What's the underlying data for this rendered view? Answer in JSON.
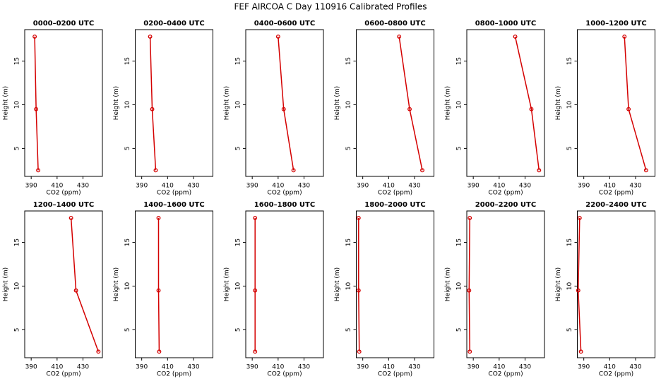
{
  "title": "FEF AIRCOA C  Day 110916  Calibrated Profiles",
  "chart_data": [
    {
      "type": "line",
      "title": "0000–0200 UTC",
      "xlabel": "CO2 (ppm)",
      "ylabel": "Height (m)",
      "color": "#d40000",
      "x": [
        392.7,
        393.8,
        395.4
      ],
      "values": [
        17.8,
        9.5,
        2.5
      ],
      "xlim": [
        385,
        445
      ],
      "ylim": [
        1.8,
        18.6
      ],
      "xticks": [
        390,
        410,
        430
      ],
      "yticks": [
        5,
        10,
        15
      ]
    },
    {
      "type": "line",
      "title": "0200–0400 UTC",
      "xlabel": "CO2 (ppm)",
      "ylabel": "Height (m)",
      "color": "#d40000",
      "x": [
        396.5,
        398.1,
        400.8
      ],
      "values": [
        17.8,
        9.5,
        2.5
      ],
      "xlim": [
        385,
        445
      ],
      "ylim": [
        1.8,
        18.6
      ],
      "xticks": [
        390,
        410,
        430
      ],
      "yticks": [
        5,
        10,
        15
      ]
    },
    {
      "type": "line",
      "title": "0400–0600 UTC",
      "xlabel": "CO2 (ppm)",
      "ylabel": "Height (m)",
      "color": "#d40000",
      "x": [
        410,
        414.3,
        421.9
      ],
      "values": [
        17.8,
        9.5,
        2.5
      ],
      "xlim": [
        385,
        445
      ],
      "ylim": [
        1.8,
        18.6
      ],
      "xticks": [
        390,
        410,
        430
      ],
      "yticks": [
        5,
        10,
        15
      ]
    },
    {
      "type": "line",
      "title": "0600–0800 UTC",
      "xlabel": "CO2 (ppm)",
      "ylabel": "Height (m)",
      "color": "#d40000",
      "x": [
        418.1,
        426.2,
        436
      ],
      "values": [
        17.8,
        9.5,
        2.5
      ],
      "xlim": [
        385,
        445
      ],
      "ylim": [
        1.8,
        18.6
      ],
      "xticks": [
        390,
        410,
        430
      ],
      "yticks": [
        5,
        10,
        15
      ]
    },
    {
      "type": "line",
      "title": "0800–1000 UTC",
      "xlabel": "CO2 (ppm)",
      "ylabel": "Height (m)",
      "color": "#d40000",
      "x": [
        422.4,
        434.9,
        440.8
      ],
      "values": [
        17.8,
        9.5,
        2.5
      ],
      "xlim": [
        385,
        445
      ],
      "ylim": [
        1.8,
        18.6
      ],
      "xticks": [
        390,
        410,
        430
      ],
      "yticks": [
        5,
        10,
        15
      ]
    },
    {
      "type": "line",
      "title": "1000–1200 UTC",
      "xlabel": "CO2 (ppm)",
      "ylabel": "Height (m)",
      "color": "#d40000",
      "x": [
        421.4,
        424.6,
        438.1
      ],
      "values": [
        17.8,
        9.5,
        2.5
      ],
      "xlim": [
        385,
        445
      ],
      "ylim": [
        1.8,
        18.6
      ],
      "xticks": [
        390,
        410,
        430
      ],
      "yticks": [
        5,
        10,
        15
      ]
    },
    {
      "type": "line",
      "title": "1200–1400 UTC",
      "xlabel": "CO2 (ppm)",
      "ylabel": "Height (m)",
      "color": "#d40000",
      "x": [
        420.8,
        424.6,
        441.9
      ],
      "values": [
        17.8,
        9.5,
        2.5
      ],
      "xlim": [
        385,
        445
      ],
      "ylim": [
        1.8,
        18.6
      ],
      "xticks": [
        390,
        410,
        430
      ],
      "yticks": [
        5,
        10,
        15
      ]
    },
    {
      "type": "line",
      "title": "1400–1600 UTC",
      "xlabel": "CO2 (ppm)",
      "ylabel": "Height (m)",
      "color": "#d40000",
      "x": [
        403,
        403,
        403.5
      ],
      "values": [
        17.8,
        9.5,
        2.5
      ],
      "xlim": [
        385,
        445
      ],
      "ylim": [
        1.8,
        18.6
      ],
      "xticks": [
        390,
        410,
        430
      ],
      "yticks": [
        5,
        10,
        15
      ]
    },
    {
      "type": "line",
      "title": "1600–1800 UTC",
      "xlabel": "CO2 (ppm)",
      "ylabel": "Height (m)",
      "color": "#d40000",
      "x": [
        392.2,
        392.2,
        392.2
      ],
      "values": [
        17.8,
        9.5,
        2.5
      ],
      "xlim": [
        385,
        445
      ],
      "ylim": [
        1.8,
        18.6
      ],
      "xticks": [
        390,
        410,
        430
      ],
      "yticks": [
        5,
        10,
        15
      ]
    },
    {
      "type": "line",
      "title": "1800–2000 UTC",
      "xlabel": "CO2 (ppm)",
      "ylabel": "Height (m)",
      "color": "#d40000",
      "x": [
        386.8,
        386.8,
        387.3
      ],
      "values": [
        17.8,
        9.5,
        2.5
      ],
      "xlim": [
        385,
        445
      ],
      "ylim": [
        1.8,
        18.6
      ],
      "xticks": [
        390,
        410,
        430
      ],
      "yticks": [
        5,
        10,
        15
      ]
    },
    {
      "type": "line",
      "title": "2000–2200 UTC",
      "xlabel": "CO2 (ppm)",
      "ylabel": "Height (m)",
      "color": "#d40000",
      "x": [
        387.3,
        386.8,
        387.3
      ],
      "values": [
        17.8,
        9.5,
        2.5
      ],
      "xlim": [
        385,
        445
      ],
      "ylim": [
        1.8,
        18.6
      ],
      "xticks": [
        390,
        410,
        430
      ],
      "yticks": [
        5,
        10,
        15
      ]
    },
    {
      "type": "line",
      "title": "2200–2400 UTC",
      "xlabel": "CO2 (ppm)",
      "ylabel": "Height (m)",
      "color": "#d40000",
      "x": [
        386.8,
        385.7,
        387.8
      ],
      "values": [
        17.8,
        9.5,
        2.5
      ],
      "xlim": [
        385,
        445
      ],
      "ylim": [
        1.8,
        18.6
      ],
      "xticks": [
        390,
        410,
        430
      ],
      "yticks": [
        5,
        10,
        15
      ]
    }
  ]
}
